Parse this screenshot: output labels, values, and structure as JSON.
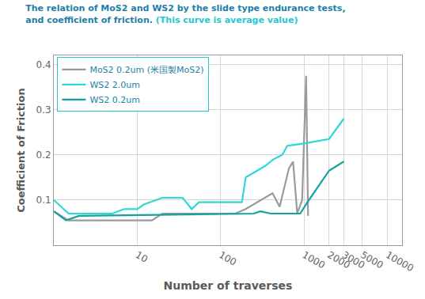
{
  "chart_data": {
    "type": "line",
    "title": "The relation of MoS2 and WS2 by the slide type endurance tests,\nand coefficient of friction.",
    "subtitle": "(This curve is average value)",
    "x_label": "Number of traverses",
    "y_label": "Coefficient of Friction",
    "log": "x",
    "grid": true,
    "legend": "upper left",
    "xlim": [
      1,
      15000
    ],
    "xticks": [
      10,
      100,
      1000,
      2000,
      3000,
      5000,
      10000
    ],
    "ylim": [
      0,
      0.42
    ],
    "yticks": [
      0.1,
      0.2,
      0.3,
      0.4
    ],
    "series": [
      {
        "name": "MoS2 0.2um (米国製MoS2)",
        "color": "#9a9a9a",
        "line_style": "solid",
        "x": [
          1,
          1.5,
          15,
          20,
          150,
          200,
          420,
          510,
          660,
          740,
          830,
          950,
          1060,
          1120
        ],
        "values": [
          0.075,
          0.055,
          0.055,
          0.07,
          0.07,
          0.08,
          0.115,
          0.085,
          0.17,
          0.185,
          0.07,
          0.1,
          0.375,
          0.065
        ]
      },
      {
        "name": "WS2 2.0um",
        "color": "#2fd8d4",
        "line_style": "solid",
        "x": [
          1,
          1.5,
          5,
          7,
          10,
          12,
          20,
          35,
          45,
          55,
          180,
          200,
          340,
          430,
          550,
          630,
          1000,
          2000,
          3000
        ],
        "values": [
          0.1,
          0.07,
          0.07,
          0.08,
          0.08,
          0.09,
          0.105,
          0.105,
          0.08,
          0.095,
          0.095,
          0.15,
          0.175,
          0.19,
          0.2,
          0.22,
          0.225,
          0.235,
          0.28
        ]
      },
      {
        "name": "WS2 0.2um",
        "color": "#14a29f",
        "line_style": "solid",
        "x": [
          1,
          1.4,
          2,
          250,
          300,
          400,
          900,
          1100,
          2000,
          3000
        ],
        "values": [
          0.075,
          0.055,
          0.065,
          0.07,
          0.075,
          0.07,
          0.07,
          0.095,
          0.165,
          0.185
        ]
      }
    ]
  }
}
